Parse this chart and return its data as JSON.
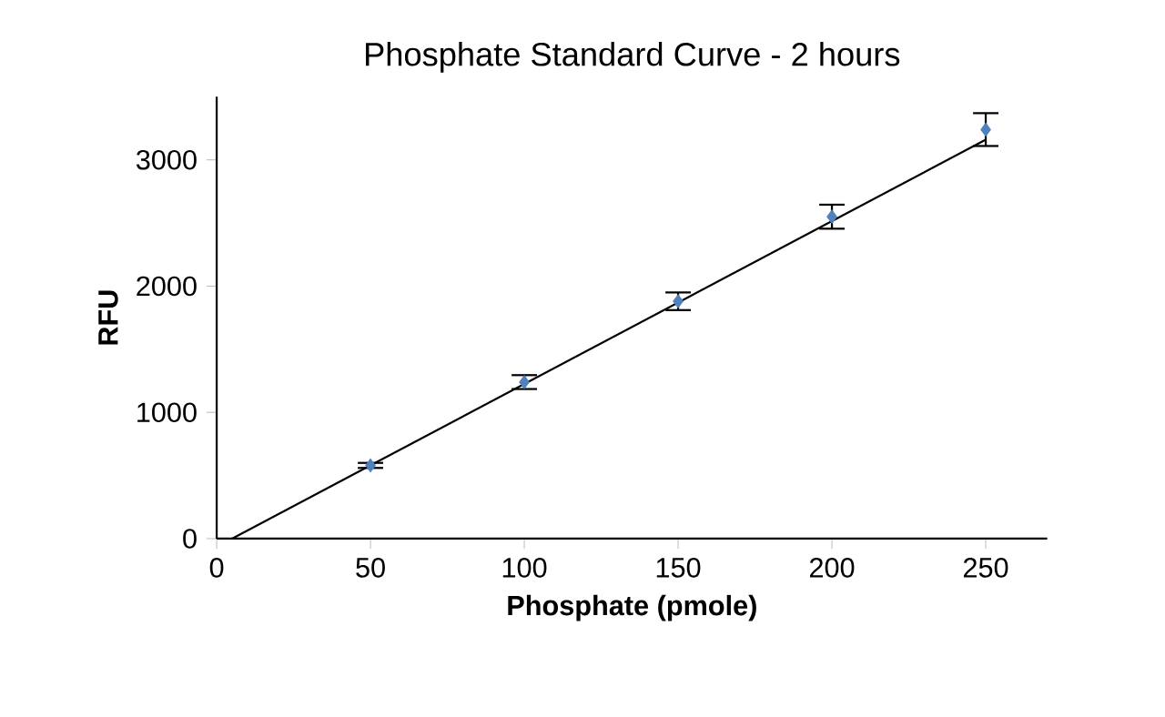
{
  "chart_data": {
    "type": "scatter",
    "title": "Phosphate Standard Curve - 2 hours",
    "xlabel": "Phosphate (pmole)",
    "ylabel": "RFU",
    "xlim": [
      0,
      270
    ],
    "ylim": [
      0,
      3500
    ],
    "xticks": [
      0,
      50,
      100,
      150,
      200,
      250
    ],
    "yticks": [
      0,
      1000,
      2000,
      3000
    ],
    "grid": false,
    "series": [
      {
        "color": "#4f81bd",
        "marker": "diamond",
        "x": [
          50,
          100,
          150,
          200,
          250
        ],
        "values": [
          580,
          1240,
          1880,
          2550,
          3240
        ],
        "errors": [
          20,
          55,
          70,
          95,
          130
        ]
      },
      {
        "type": "line",
        "color": "#000000",
        "marker": "none",
        "line_style": "solid",
        "x": [
          5,
          250
        ],
        "values": [
          0,
          3160
        ]
      }
    ]
  }
}
